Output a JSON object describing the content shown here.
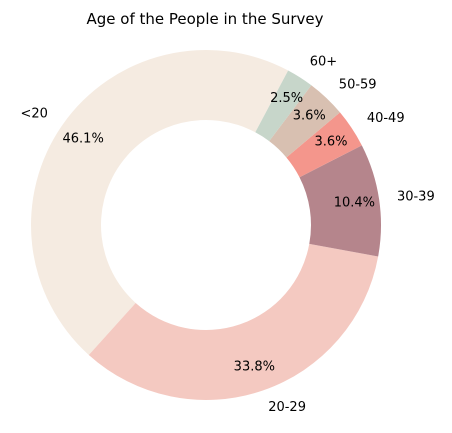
{
  "chart_data": {
    "type": "pie",
    "variant": "donut",
    "title": "Age of the People in the Survey",
    "categories": [
      "<20",
      "20-29",
      "30-39",
      "40-49",
      "50-59",
      "60+"
    ],
    "values": [
      46.1,
      33.8,
      10.4,
      3.6,
      3.6,
      2.5
    ],
    "value_labels": [
      "46.1%",
      "33.8%",
      "10.4%",
      "3.6%",
      "3.6%",
      "2.5%"
    ],
    "colors": [
      "#f5ebe1",
      "#f4c9c1",
      "#b5858c",
      "#f4968c",
      "#d8c0b1",
      "#c7d6ca"
    ],
    "start_angle_deg": 62,
    "direction": "counterclockwise",
    "legend": "none"
  }
}
